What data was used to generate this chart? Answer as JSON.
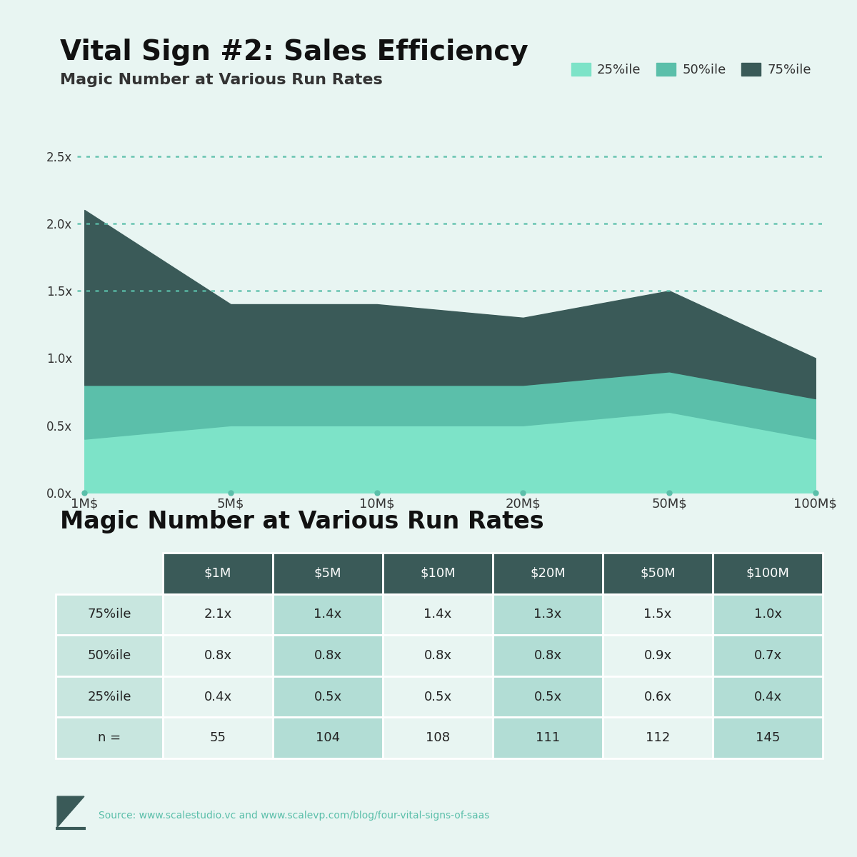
{
  "title": "Vital Sign #2: Sales Efficiency",
  "subtitle": "Magic Number at Various Run Rates",
  "bg_color": "#e8f5f2",
  "x_labels": [
    "1M$",
    "5M$",
    "10M$",
    "20M$",
    "50M$",
    "100M$"
  ],
  "x_values": [
    0,
    1,
    2,
    3,
    4,
    5
  ],
  "p25": [
    0.4,
    0.5,
    0.5,
    0.5,
    0.6,
    0.4
  ],
  "p50": [
    0.8,
    0.8,
    0.8,
    0.8,
    0.9,
    0.7
  ],
  "p75": [
    2.1,
    1.4,
    1.4,
    1.3,
    1.5,
    1.0
  ],
  "color_25": "#7de3c8",
  "color_50": "#5bbfaa",
  "color_75": "#3a5a58",
  "dotted_line_color": "#5bbfaa",
  "dotted_lines": [
    2.5,
    2.0,
    1.5
  ],
  "ylim": [
    0.0,
    2.8
  ],
  "yticks": [
    0.0,
    0.5,
    1.0,
    1.5,
    2.0,
    2.5
  ],
  "ytick_labels": [
    "0.0x",
    "0.5x",
    "1.0x",
    "1.5x",
    "2.0x",
    "2.5x"
  ],
  "table_title": "Magic Number at Various Run Rates",
  "table_col_headers": [
    "$1M",
    "$5M",
    "$10M",
    "$20M",
    "$50M",
    "$100M"
  ],
  "table_row_headers": [
    "75%ile",
    "50%ile",
    "25%ile",
    "n ="
  ],
  "table_data": [
    [
      "2.1x",
      "1.4x",
      "1.4x",
      "1.3x",
      "1.5x",
      "1.0x"
    ],
    [
      "0.8x",
      "0.8x",
      "0.8x",
      "0.8x",
      "0.9x",
      "0.7x"
    ],
    [
      "0.4x",
      "0.5x",
      "0.5x",
      "0.5x",
      "0.6x",
      "0.4x"
    ],
    [
      "55",
      "104",
      "108",
      "111",
      "112",
      "145"
    ]
  ],
  "table_header_bg": "#3a5a58",
  "table_header_fg": "#ffffff",
  "table_row_bg": "#c8e6df",
  "table_data_bg_light": "#e8f5f2",
  "table_data_bg_teal": "#b2ddd5",
  "source_text": "Source: www.scalestudio.vc and www.scalevp.com/blog/four-vital-signs-of-saas"
}
